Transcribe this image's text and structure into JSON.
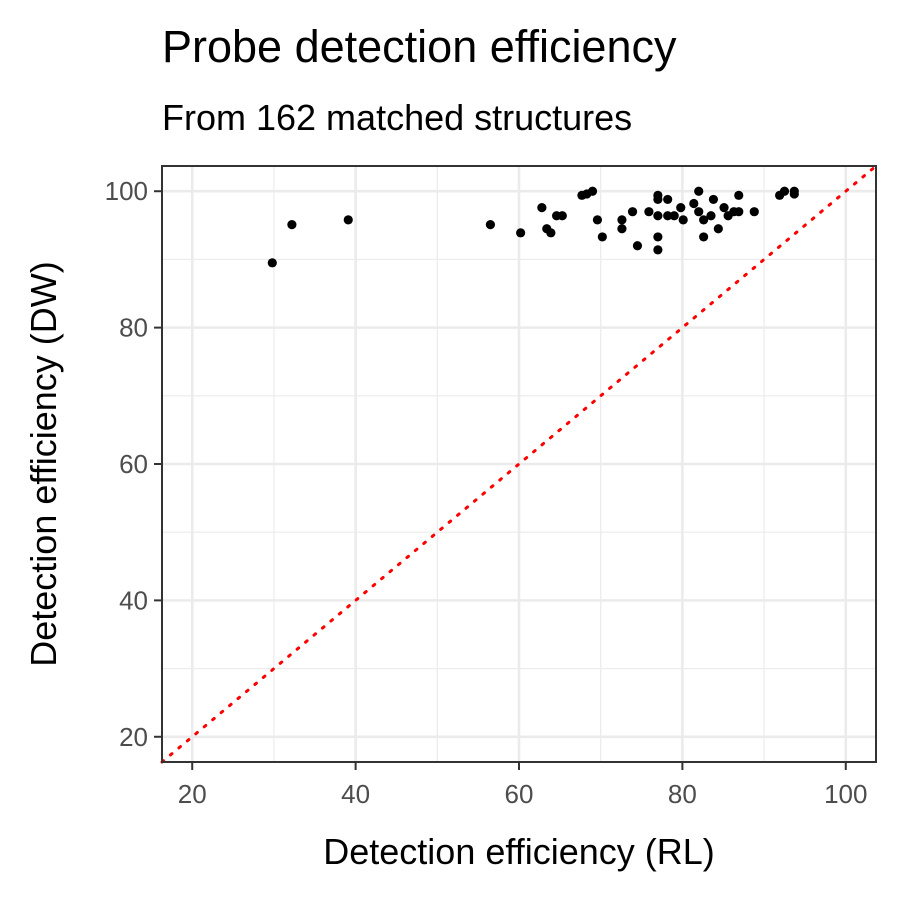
{
  "chart_data": {
    "type": "scatter",
    "title": "Probe detection efficiency",
    "subtitle": "From 162 matched structures",
    "xlabel": "Detection efficiency (RL)",
    "ylabel": "Detection efficiency (DW)",
    "xlim": [
      16.3,
      103.7
    ],
    "ylim": [
      16.3,
      103.7
    ],
    "x_ticks": [
      20,
      40,
      60,
      80,
      100
    ],
    "y_ticks": [
      20,
      40,
      60,
      80,
      100
    ],
    "grid": true,
    "reference_line": {
      "type": "identity",
      "style": "dotted",
      "color": "#ff0000"
    },
    "point_color": "#000000",
    "points": [
      {
        "x": 29.8,
        "y": 89.5
      },
      {
        "x": 32.2,
        "y": 95.1
      },
      {
        "x": 39.1,
        "y": 95.8
      },
      {
        "x": 56.5,
        "y": 95.1
      },
      {
        "x": 60.2,
        "y": 93.9
      },
      {
        "x": 62.8,
        "y": 97.6
      },
      {
        "x": 63.4,
        "y": 94.5
      },
      {
        "x": 63.9,
        "y": 93.9
      },
      {
        "x": 64.6,
        "y": 96.4
      },
      {
        "x": 65.3,
        "y": 96.4
      },
      {
        "x": 67.7,
        "y": 99.4
      },
      {
        "x": 68.3,
        "y": 99.6
      },
      {
        "x": 69.0,
        "y": 100.0
      },
      {
        "x": 69.6,
        "y": 95.8
      },
      {
        "x": 70.2,
        "y": 93.3
      },
      {
        "x": 72.6,
        "y": 95.8
      },
      {
        "x": 72.6,
        "y": 94.5
      },
      {
        "x": 73.9,
        "y": 97.0
      },
      {
        "x": 74.5,
        "y": 92.0
      },
      {
        "x": 75.9,
        "y": 97.0
      },
      {
        "x": 77.0,
        "y": 99.4
      },
      {
        "x": 77.0,
        "y": 98.8
      },
      {
        "x": 77.0,
        "y": 96.4
      },
      {
        "x": 77.0,
        "y": 93.3
      },
      {
        "x": 77.0,
        "y": 91.4
      },
      {
        "x": 78.2,
        "y": 98.8
      },
      {
        "x": 78.2,
        "y": 96.4
      },
      {
        "x": 79.0,
        "y": 96.4
      },
      {
        "x": 79.8,
        "y": 97.6
      },
      {
        "x": 80.1,
        "y": 95.8
      },
      {
        "x": 81.4,
        "y": 98.2
      },
      {
        "x": 82.0,
        "y": 100.0
      },
      {
        "x": 82.0,
        "y": 97.0
      },
      {
        "x": 82.6,
        "y": 95.8
      },
      {
        "x": 82.6,
        "y": 93.3
      },
      {
        "x": 83.5,
        "y": 96.4
      },
      {
        "x": 83.8,
        "y": 98.8
      },
      {
        "x": 84.4,
        "y": 94.5
      },
      {
        "x": 85.1,
        "y": 97.6
      },
      {
        "x": 85.6,
        "y": 96.4
      },
      {
        "x": 86.3,
        "y": 97.0
      },
      {
        "x": 86.9,
        "y": 99.4
      },
      {
        "x": 86.9,
        "y": 97.0
      },
      {
        "x": 88.8,
        "y": 97.0
      },
      {
        "x": 91.9,
        "y": 99.4
      },
      {
        "x": 92.5,
        "y": 100.0
      },
      {
        "x": 93.7,
        "y": 100.0
      },
      {
        "x": 93.7,
        "y": 99.6
      }
    ]
  }
}
